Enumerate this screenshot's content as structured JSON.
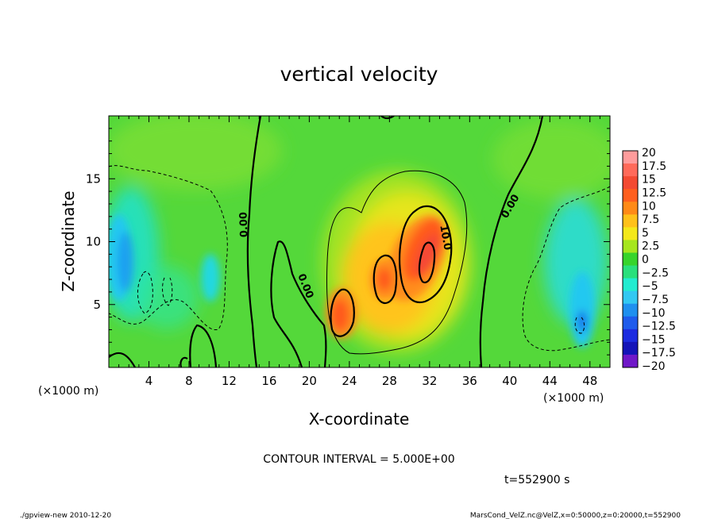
{
  "chart_data": {
    "type": "heatmap",
    "title": "vertical velocity",
    "xlabel": "X-coordinate",
    "ylabel": "Z-coordinate",
    "x_unit": "(×1000 m)",
    "y_unit": "(×1000 m)",
    "xlim": [
      0,
      50
    ],
    "ylim": [
      0,
      20
    ],
    "x_ticks": [
      "4",
      "8",
      "12",
      "16",
      "20",
      "24",
      "28",
      "32",
      "36",
      "40",
      "44",
      "48"
    ],
    "y_ticks": [
      "5",
      "10",
      "15"
    ],
    "contour_interval_label": "CONTOUR INTERVAL = 5.000E+00",
    "time_label": "t=552900 s",
    "contour_labels": [
      "0.00",
      "0.00",
      "0.00",
      "10.0"
    ],
    "colorbar": {
      "labels": [
        "20",
        "17.5",
        "15",
        "12.5",
        "10",
        "7.5",
        "5",
        "2.5",
        "0",
        "−2.5",
        "−5",
        "−7.5",
        "−10",
        "−12.5",
        "−15",
        "−17.5",
        "−20"
      ],
      "colors": [
        "#ff9c9c",
        "#ff6a5a",
        "#f34a32",
        "#ff5f1e",
        "#ff8a17",
        "#ffc11a",
        "#f4e81a",
        "#a6e61f",
        "#37d42c",
        "#2ae07c",
        "#22ecd0",
        "#32c8f2",
        "#1f90ef",
        "#1f5cec",
        "#1c2ce0",
        "#1414b8",
        "#7018c8"
      ]
    },
    "features": [
      {
        "type": "updraft",
        "x": 31.5,
        "z": 8.0,
        "value": 17.0
      },
      {
        "type": "updraft",
        "x": 27.5,
        "z": 7.0,
        "value": 13.0
      },
      {
        "type": "updraft",
        "x": 22.8,
        "z": 4.2,
        "value": 15.0
      },
      {
        "type": "downdraft",
        "x": 1.0,
        "z": 9.5,
        "value": -8.0
      },
      {
        "type": "downdraft",
        "x": 47.8,
        "z": 4.0,
        "value": -9.0
      }
    ]
  },
  "footer": {
    "left": "./gpview-new   2010-12-20",
    "right": "MarsCond_VelZ.nc@VelZ,x=0:50000,z=0:20000,t=552900"
  }
}
